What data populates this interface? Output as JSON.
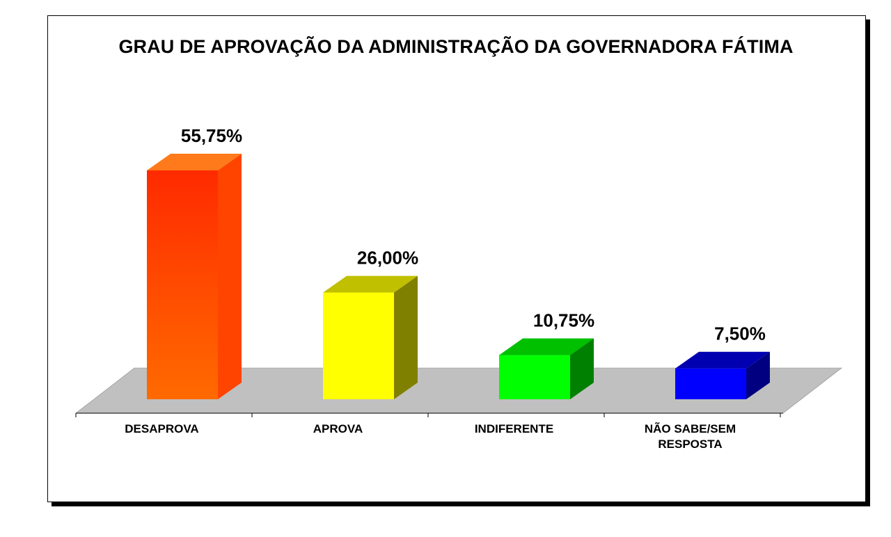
{
  "chart_data": {
    "type": "bar",
    "title": "GRAU DE APROVAÇÃO DA ADMINISTRAÇÃO DA GOVERNADORA FÁTIMA",
    "categories": [
      [
        "DESAPROVA"
      ],
      [
        "APROVA"
      ],
      [
        "INDIFERENTE"
      ],
      [
        "NÃO SABE/SEM",
        "RESPOSTA"
      ]
    ],
    "values": [
      55.75,
      26.0,
      10.75,
      7.5
    ],
    "data_labels": [
      "55,75%",
      "26,00%",
      "10,75%",
      "7,50%"
    ],
    "ylim": [
      0,
      60
    ],
    "grid": false,
    "legend": "none",
    "colors": [
      {
        "front_top": "#ff2a00",
        "front_bottom": "#ff6a00",
        "top": "#ff7a1a",
        "side": "#ff4400"
      },
      {
        "front_top": "#ffff00",
        "front_bottom": "#ffff00",
        "top": "#c0c000",
        "side": "#808000"
      },
      {
        "front_top": "#00ff00",
        "front_bottom": "#00ff00",
        "top": "#00c000",
        "side": "#008000"
      },
      {
        "front_top": "#0000ff",
        "front_bottom": "#0000ff",
        "top": "#0000b0",
        "side": "#000080"
      }
    ],
    "floor_color": "#c0c0c0"
  }
}
